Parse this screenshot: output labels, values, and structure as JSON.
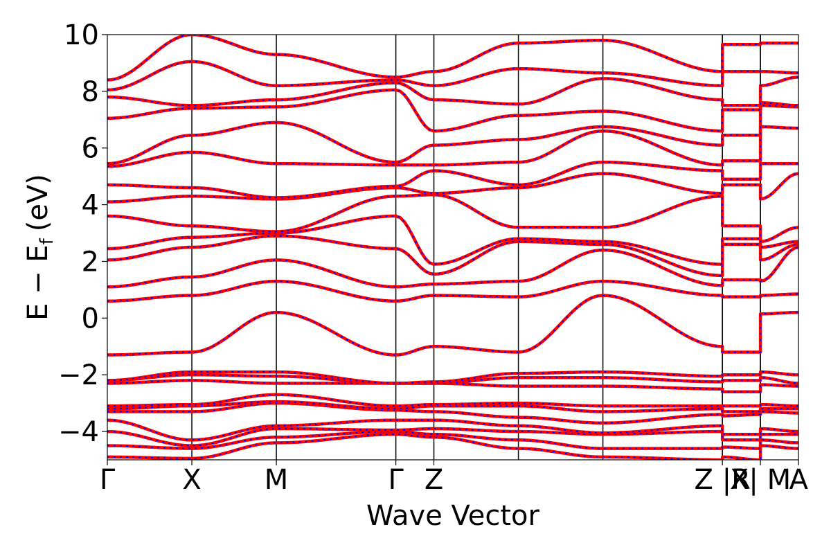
{
  "chart_data": {
    "type": "line",
    "title": "",
    "xlabel": "Wave Vector",
    "ylabel": "E − E",
    "ylabel_subscript": "f",
    "ylabel_unit": "(eV)",
    "ylim": [
      -5,
      10
    ],
    "yticks": [
      {
        "value": 10,
        "label": "10"
      },
      {
        "value": 8,
        "label": "8"
      },
      {
        "value": 6,
        "label": "6"
      },
      {
        "value": 4,
        "label": "4"
      },
      {
        "value": 2,
        "label": "2"
      },
      {
        "value": 0,
        "label": "0"
      },
      {
        "value": -2,
        "label": "−2"
      },
      {
        "value": -4,
        "label": "−4"
      }
    ],
    "kpath_labels": [
      {
        "label": "Γ",
        "x": 0.0
      },
      {
        "label": "X",
        "x": 1.0
      },
      {
        "label": "M",
        "x": 2.0
      },
      {
        "label": "Γ",
        "x": 3.414
      },
      {
        "label": "Z",
        "x": 3.864
      },
      {
        "label": "Z |R",
        "x": 7.278
      },
      {
        "label": "X| M",
        "x": 7.728
      },
      {
        "label": "A",
        "x": 8.178
      }
    ],
    "kpath_points": [
      {
        "label": "Γ",
        "x": 0.0
      },
      {
        "label": "X",
        "x": 1.0
      },
      {
        "label": "M",
        "x": 2.0
      },
      {
        "label": "Γ",
        "x": 3.414
      },
      {
        "label": "Z",
        "x": 3.864
      },
      {
        "label": "R",
        "x": 4.864
      },
      {
        "label": "A",
        "x": 5.864
      },
      {
        "label": "Z",
        "x": 7.278
      },
      {
        "label": "R",
        "x": 7.278
      },
      {
        "label": "X",
        "x": 7.728
      },
      {
        "label": "M",
        "x": 7.728
      },
      {
        "label": "A",
        "x": 8.178
      }
    ],
    "xlim": [
      0,
      8.178
    ],
    "series_colors": {
      "band": "#ff0000",
      "overlay": "#0000ff"
    },
    "bands": [
      {
        "values": [
          -4.9,
          -4.95,
          -4.4,
          -4.1,
          -4.2,
          -4.6,
          -4.9,
          -5.0,
          -4.9,
          -5.0,
          -4.5,
          -4.6
        ]
      },
      {
        "values": [
          -4.5,
          -4.6,
          -4.2,
          -4.0,
          -4.1,
          -4.3,
          -4.6,
          -4.6,
          -4.55,
          -4.6,
          -4.3,
          -4.4
        ]
      },
      {
        "values": [
          -4.0,
          -4.5,
          -3.9,
          -3.95,
          -3.9,
          -4.0,
          -4.1,
          -4.0,
          -4.3,
          -4.3,
          -4.1,
          -4.1
        ]
      },
      {
        "values": [
          -3.6,
          -4.3,
          -3.8,
          -3.6,
          -3.6,
          -3.8,
          -4.05,
          -3.8,
          -4.1,
          -4.1,
          -3.9,
          -4.0
        ]
      },
      {
        "values": [
          -3.3,
          -3.3,
          -3.0,
          -3.25,
          -3.3,
          -3.5,
          -3.7,
          -3.4,
          -3.45,
          -3.4,
          -3.3,
          -3.35
        ]
      },
      {
        "values": [
          -3.2,
          -3.1,
          -2.95,
          -3.2,
          -3.1,
          -3.1,
          -3.3,
          -3.2,
          -3.3,
          -3.3,
          -3.2,
          -3.2
        ]
      },
      {
        "values": [
          -3.1,
          -3.05,
          -2.7,
          -3.1,
          -3.05,
          -3.0,
          -3.1,
          -3.1,
          -3.1,
          -3.1,
          -3.05,
          -3.1
        ]
      },
      {
        "values": [
          -2.3,
          -2.2,
          -2.3,
          -2.3,
          -2.3,
          -2.4,
          -2.4,
          -2.5,
          -2.6,
          -2.6,
          -2.35,
          -2.4
        ]
      },
      {
        "values": [
          -2.2,
          -2.0,
          -2.05,
          -2.3,
          -2.3,
          -2.1,
          -2.1,
          -2.25,
          -2.2,
          -2.2,
          -2.1,
          -2.3
        ]
      },
      {
        "values": [
          -2.2,
          -1.9,
          -1.9,
          -2.3,
          -2.25,
          -1.95,
          -1.9,
          -2.05,
          -2.0,
          -2.0,
          -1.9,
          -2.0
        ]
      },
      {
        "values": [
          -1.3,
          -1.2,
          0.2,
          -1.3,
          -1.0,
          -1.2,
          0.8,
          -1.0,
          -1.2,
          -1.2,
          0.15,
          0.2
        ]
      },
      {
        "values": [
          0.6,
          0.8,
          1.3,
          0.6,
          0.8,
          0.75,
          1.3,
          0.8,
          0.75,
          0.75,
          0.8,
          0.85
        ]
      },
      {
        "values": [
          1.1,
          1.45,
          2.05,
          1.1,
          1.2,
          1.3,
          2.4,
          1.15,
          1.35,
          1.35,
          1.3,
          2.5
        ]
      },
      {
        "values": [
          2.05,
          2.5,
          2.9,
          2.45,
          1.55,
          2.7,
          2.6,
          1.5,
          2.6,
          2.6,
          2.05,
          2.6
        ]
      },
      {
        "values": [
          2.45,
          2.85,
          3.0,
          3.6,
          1.9,
          2.8,
          2.7,
          1.9,
          2.8,
          2.8,
          2.5,
          2.7
        ]
      },
      {
        "values": [
          3.6,
          3.25,
          3.05,
          4.3,
          4.35,
          3.2,
          3.2,
          4.3,
          3.25,
          3.25,
          2.7,
          3.2
        ]
      },
      {
        "values": [
          4.1,
          4.3,
          4.2,
          4.6,
          4.4,
          4.6,
          5.1,
          4.4,
          4.7,
          4.7,
          4.2,
          5.1
        ]
      },
      {
        "values": [
          4.7,
          4.6,
          4.25,
          4.65,
          5.2,
          4.7,
          5.5,
          5.2,
          4.9,
          4.9,
          5.45,
          5.45
        ]
      },
      {
        "values": [
          5.35,
          5.85,
          5.45,
          5.4,
          5.4,
          5.5,
          6.6,
          5.4,
          5.55,
          5.55,
          6.75,
          6.7
        ]
      },
      {
        "values": [
          5.45,
          6.45,
          6.9,
          5.5,
          6.1,
          6.3,
          6.75,
          6.1,
          6.45,
          6.45,
          7.5,
          7.45
        ]
      },
      {
        "values": [
          7.05,
          7.4,
          7.45,
          8.05,
          6.6,
          7.15,
          7.3,
          6.6,
          7.35,
          7.35,
          7.6,
          7.5
        ]
      },
      {
        "values": [
          7.8,
          7.5,
          7.7,
          8.3,
          7.7,
          7.55,
          8.45,
          7.7,
          7.5,
          7.5,
          8.2,
          8.5
        ]
      },
      {
        "values": [
          8.05,
          9.05,
          8.2,
          8.4,
          8.2,
          8.8,
          8.65,
          8.2,
          8.7,
          8.7,
          8.7,
          8.65
        ]
      },
      {
        "values": [
          8.4,
          10.0,
          9.3,
          8.5,
          8.7,
          9.7,
          9.8,
          8.7,
          9.65,
          9.65,
          9.7,
          9.7
        ]
      }
    ]
  }
}
